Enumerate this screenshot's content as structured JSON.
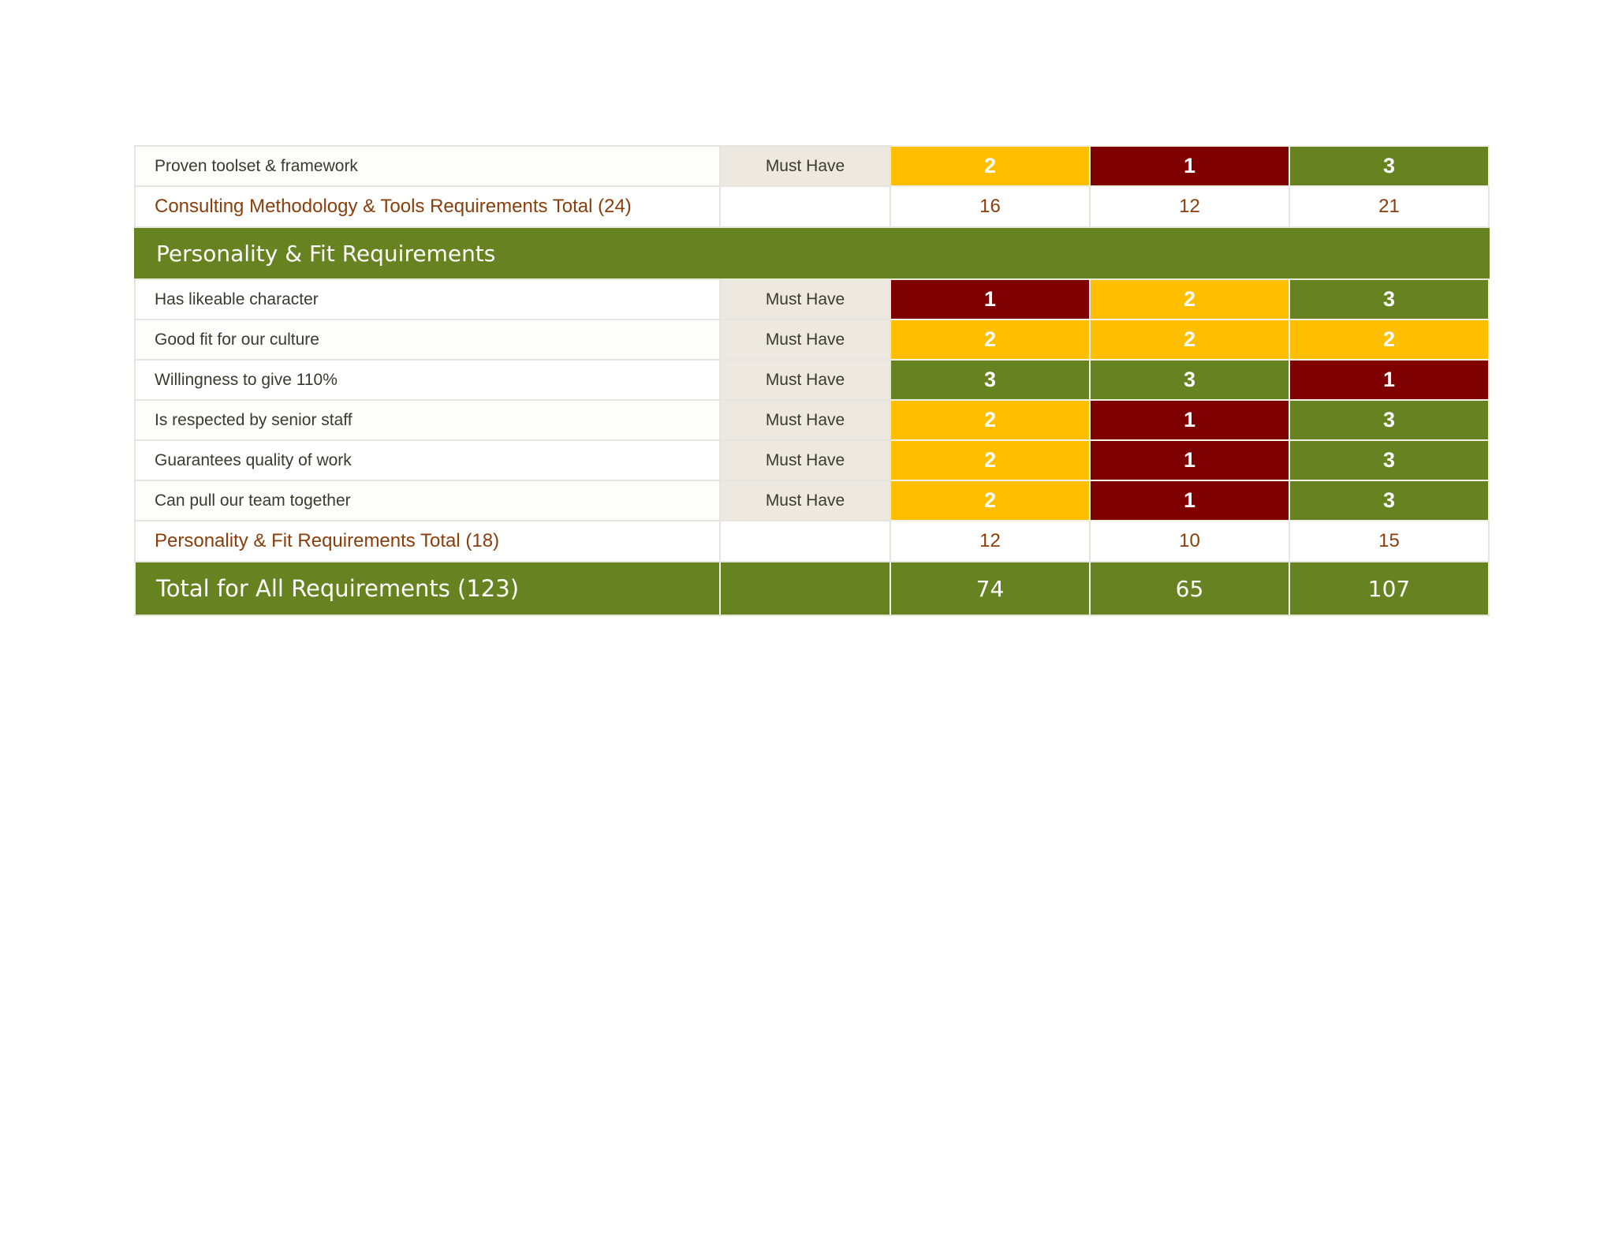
{
  "colors": {
    "score_1": "#7f0000",
    "score_2": "#ffbf00",
    "score_3": "#678220",
    "priority_bg": "#ede9e0",
    "subtotal_text": "#8b3d0a",
    "section_bg": "#678220"
  },
  "top_rows": [
    {
      "requirement": "Proven toolset & framework",
      "priority": "Must Have",
      "scores": [
        "2",
        "1",
        "3"
      ]
    }
  ],
  "consulting_total": {
    "label": "Consulting Methodology & Tools Requirements Total (24)",
    "values": [
      "16",
      "12",
      "21"
    ]
  },
  "personality_section": {
    "title": "Personality & Fit Requirements",
    "rows": [
      {
        "requirement": "Has likeable character",
        "priority": "Must Have",
        "scores": [
          "1",
          "2",
          "3"
        ]
      },
      {
        "requirement": "Good fit for our culture",
        "priority": "Must Have",
        "scores": [
          "2",
          "2",
          "2"
        ]
      },
      {
        "requirement": "Willingness to give 110%",
        "priority": "Must Have",
        "scores": [
          "3",
          "3",
          "1"
        ]
      },
      {
        "requirement": "Is respected by senior staff",
        "priority": "Must Have",
        "scores": [
          "2",
          "1",
          "3"
        ]
      },
      {
        "requirement": "Guarantees quality of work",
        "priority": "Must Have",
        "scores": [
          "2",
          "1",
          "3"
        ]
      },
      {
        "requirement": "Can pull our team together",
        "priority": "Must Have",
        "scores": [
          "2",
          "1",
          "3"
        ]
      }
    ],
    "total": {
      "label": "Personality & Fit Requirements Total (18)",
      "values": [
        "12",
        "10",
        "15"
      ]
    }
  },
  "grand_total": {
    "label": "Total for All Requirements (123)",
    "values": [
      "74",
      "65",
      "107"
    ]
  }
}
